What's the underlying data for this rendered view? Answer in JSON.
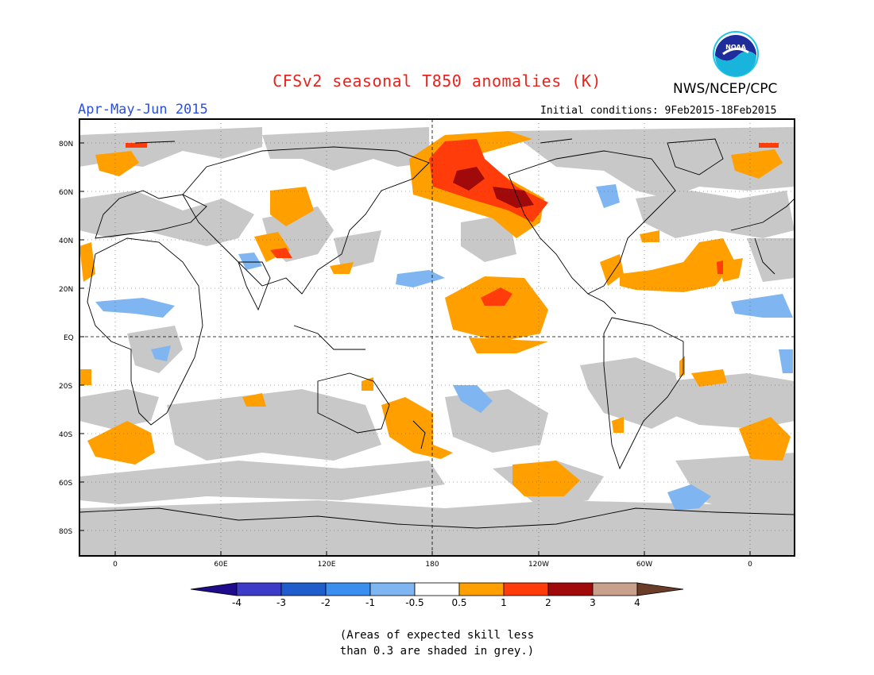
{
  "header": {
    "title": "CFSv2 seasonal T850 anomalies (K)",
    "period": "Apr-May-Jun 2015",
    "agency": "NWS/NCEP/CPC",
    "initial_conditions": "Initial conditions: 9Feb2015-18Feb2015",
    "logo_text": "NOAA"
  },
  "axes": {
    "lat_labels": [
      "80N",
      "60N",
      "40N",
      "20N",
      "EQ",
      "20S",
      "40S",
      "60S",
      "80S"
    ],
    "lon_labels": [
      "0",
      "60E",
      "120E",
      "180",
      "120W",
      "60W",
      "0"
    ]
  },
  "colorbar": {
    "labels": [
      "-4",
      "-3",
      "-2",
      "-1",
      "-0.5",
      "0.5",
      "1",
      "2",
      "3",
      "4"
    ],
    "colors": [
      "#1e0c8c",
      "#3c3cc8",
      "#1f5ccc",
      "#3a8ef0",
      "#7fb6f2",
      "#ffffff",
      "#ffa000",
      "#ff3c0a",
      "#a00a0a",
      "#c9a08c",
      "#6b3c28"
    ]
  },
  "legend": {
    "grey_color": "#c8c8c8",
    "note_line1": "(Areas of expected skill less",
    "note_line2": "than 0.3 are shaded in grey.)"
  }
}
